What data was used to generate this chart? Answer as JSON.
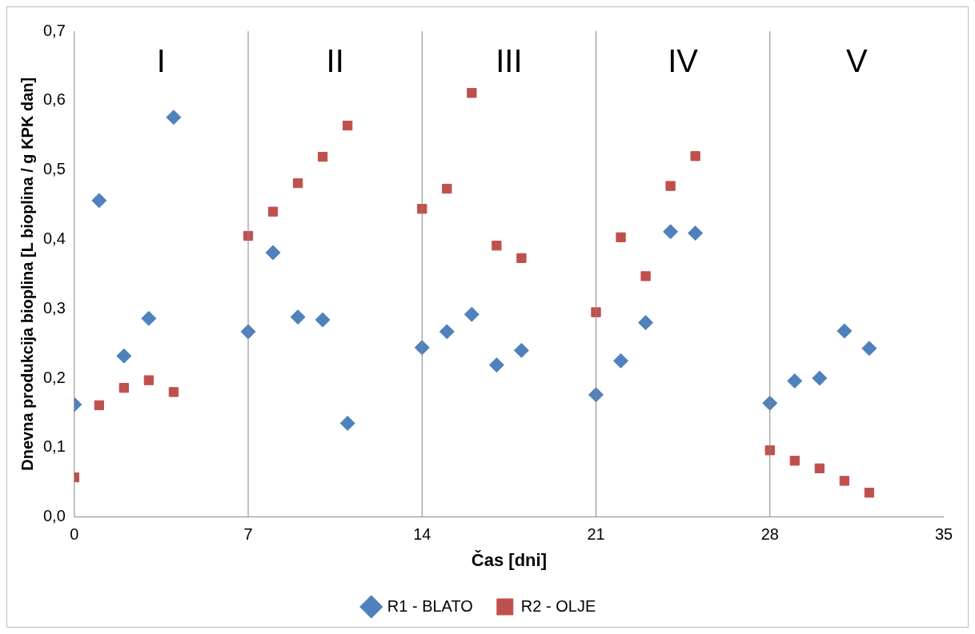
{
  "chart_data": {
    "type": "scatter",
    "xlabel": "Čas [dni]",
    "ylabel": "Dnevna produkcija bioplina [L bioplina / g KPK dan]",
    "x": [
      0,
      1,
      2,
      3,
      4,
      7,
      8,
      9,
      10,
      11,
      14,
      15,
      16,
      17,
      18,
      21,
      22,
      23,
      24,
      25,
      28,
      29,
      30,
      31,
      32
    ],
    "series": [
      {
        "name": "R1 - BLATO",
        "color": "#4f81bd",
        "marker": "diamond",
        "values": [
          0.162,
          0.456,
          0.232,
          0.286,
          0.576,
          0.267,
          0.381,
          0.288,
          0.284,
          0.135,
          0.244,
          0.267,
          0.292,
          0.219,
          0.24,
          0.176,
          0.225,
          0.28,
          0.411,
          0.409,
          0.164,
          0.196,
          0.2,
          0.268,
          0.243
        ]
      },
      {
        "name": "R2 - OLJE",
        "color": "#c0504d",
        "marker": "square",
        "values": [
          0.057,
          0.161,
          0.186,
          0.197,
          0.18,
          0.405,
          0.44,
          0.481,
          0.519,
          0.564,
          0.444,
          0.473,
          0.611,
          0.391,
          0.373,
          0.295,
          0.403,
          0.347,
          0.477,
          0.52,
          0.096,
          0.081,
          0.07,
          0.052,
          0.035
        ]
      }
    ],
    "xlim": [
      0,
      35
    ],
    "xticks": [
      0,
      7,
      14,
      21,
      28,
      35
    ],
    "ylim": [
      0,
      0.7
    ],
    "yticks": [
      {
        "value": 0,
        "label": "0,0"
      },
      {
        "value": 0.1,
        "label": "0,1"
      },
      {
        "value": 0.2,
        "label": "0,2"
      },
      {
        "value": 0.3,
        "label": "0,3"
      },
      {
        "value": 0.4,
        "label": "0,4"
      },
      {
        "value": 0.5,
        "label": "0,5"
      },
      {
        "value": 0.6,
        "label": "0,6"
      },
      {
        "value": 0.7,
        "label": "0,7"
      }
    ],
    "ref_lines": [
      {
        "axis": "x",
        "value": 7,
        "color": "#868686"
      },
      {
        "axis": "x",
        "value": 14,
        "color": "#868686"
      },
      {
        "axis": "x",
        "value": 21,
        "color": "#868686"
      },
      {
        "axis": "x",
        "value": 28,
        "color": "#868686"
      }
    ],
    "annotations": [
      "I",
      "II",
      "III",
      "IV",
      "V"
    ],
    "grid": false,
    "legend": "bottom"
  }
}
